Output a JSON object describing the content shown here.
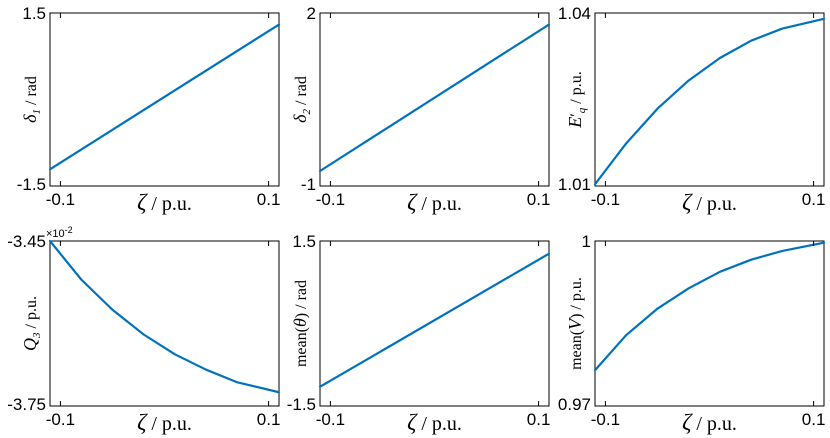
{
  "chart_data": [
    {
      "type": "line",
      "ylabel_sym": "δ",
      "ylabel_sub": "1",
      "ylabel_unit": " / rad",
      "xlabel_sym": "ζ",
      "xlabel_unit": " / p.u.",
      "xlim": [
        -0.11,
        0.11
      ],
      "ylim": [
        -1.5,
        1.5
      ],
      "xticks": [
        "-0.1",
        "0.1"
      ],
      "yticks": [
        "-1.5",
        "1.5"
      ],
      "x": [
        -0.11,
        0.11
      ],
      "y": [
        -1.21,
        1.3
      ]
    },
    {
      "type": "line",
      "ylabel_sym": "δ",
      "ylabel_sub": "2",
      "ylabel_unit": " / rad",
      "xlabel_sym": "ζ",
      "xlabel_unit": " / p.u.",
      "xlim": [
        -0.11,
        0.11
      ],
      "ylim": [
        -1,
        2
      ],
      "xticks": [
        "-0.1",
        "0.1"
      ],
      "yticks": [
        "-1",
        "2"
      ],
      "x": [
        -0.11,
        0.11
      ],
      "y": [
        -0.74,
        1.8
      ]
    },
    {
      "type": "line",
      "ylabel_sym": "E",
      "ylabel_prime": "′",
      "ylabel_sub": "q",
      "ylabel_unit": " / p.u.",
      "xlabel_sym": "ζ",
      "xlabel_unit": " / p.u.",
      "xlim": [
        -0.11,
        0.11
      ],
      "ylim": [
        1.01,
        1.04
      ],
      "xticks": [
        "-0.1",
        "0.1"
      ],
      "yticks": [
        "1.01",
        "1.04"
      ],
      "x": [
        -0.11,
        -0.08,
        -0.05,
        -0.02,
        0.01,
        0.04,
        0.07,
        0.11
      ],
      "y": [
        1.0103,
        1.0174,
        1.0234,
        1.0283,
        1.0322,
        1.0352,
        1.0373,
        1.039
      ]
    },
    {
      "type": "line",
      "ylabel_sym": "Q",
      "ylabel_sub": "3",
      "ylabel_unit": " / p.u.",
      "xlabel_sym": "ζ",
      "xlabel_unit": " / p.u.",
      "multiplier": "×10",
      "multiplier_exp": "-2",
      "xlim": [
        -0.11,
        0.11
      ],
      "ylim": [
        -3.75,
        -3.45
      ],
      "xticks": [
        "-0.1",
        "0.1"
      ],
      "yticks": [
        "-3.45",
        "-3.75"
      ],
      "x": [
        -0.11,
        -0.08,
        -0.05,
        -0.02,
        0.01,
        0.04,
        0.07,
        0.11
      ],
      "y": [
        -3.45,
        -3.52,
        -3.575,
        -3.62,
        -3.656,
        -3.684,
        -3.707,
        -3.725
      ]
    },
    {
      "type": "line",
      "ylabel_pre": "mean(",
      "ylabel_sym": "θ",
      "ylabel_post": ")",
      "ylabel_unit": " / rad",
      "xlabel_sym": "ζ",
      "xlabel_unit": " / p.u.",
      "xlim": [
        -0.11,
        0.11
      ],
      "ylim": [
        -1.5,
        1.5
      ],
      "xticks": [
        "-0.1",
        "0.1"
      ],
      "yticks": [
        "-1.5",
        "1.5"
      ],
      "x": [
        -0.11,
        0.11
      ],
      "y": [
        -1.15,
        1.27
      ]
    },
    {
      "type": "line",
      "ylabel_pre": "mean(",
      "ylabel_sym": "V",
      "ylabel_post": ")",
      "ylabel_unit": " / p.u.",
      "xlabel_sym": "ζ",
      "xlabel_unit": " / p.u.",
      "xlim": [
        -0.11,
        0.11
      ],
      "ylim": [
        0.97,
        1.0
      ],
      "xticks": [
        "-0.1",
        "0.1"
      ],
      "yticks": [
        "0.97",
        "1"
      ],
      "x": [
        -0.11,
        -0.08,
        -0.05,
        -0.02,
        0.01,
        0.04,
        0.07,
        0.11
      ],
      "y": [
        0.9765,
        0.9829,
        0.9877,
        0.9914,
        0.9944,
        0.9966,
        0.9982,
        0.9997
      ]
    }
  ],
  "line_color": "#0072BD"
}
